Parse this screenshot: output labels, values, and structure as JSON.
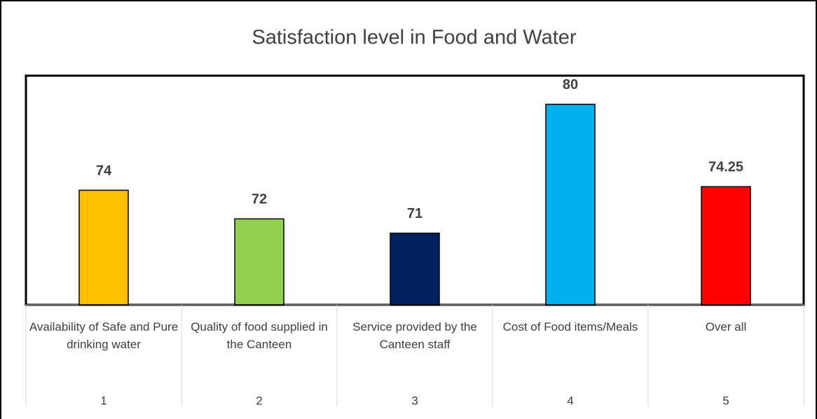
{
  "chart_data": {
    "type": "bar",
    "title": "Satisfaction level in Food and Water",
    "categories": [
      "Availability of Safe and Pure drinking water",
      "Quality of food supplied in the Canteen",
      "Service provided by the Canteen staff",
      "Cost of Food items/Meals",
      "Over all"
    ],
    "category_numbers": [
      "1",
      "2",
      "3",
      "4",
      "5"
    ],
    "values": [
      74,
      72,
      71,
      80,
      74.25
    ],
    "colors": [
      "#ffc000",
      "#92d050",
      "#002060",
      "#00b0f0",
      "#ff0000"
    ],
    "ylim": [
      66,
      82
    ]
  }
}
